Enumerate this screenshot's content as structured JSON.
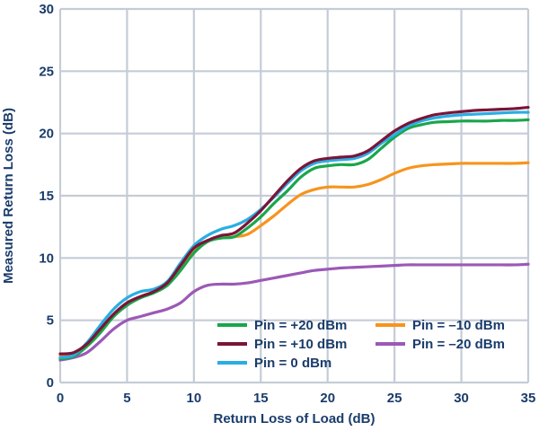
{
  "chart_data": {
    "type": "line",
    "title": "",
    "xlabel": "Return Loss of Load (dB)",
    "ylabel": "Measured Return Loss (dB)",
    "xlim": [
      0,
      35
    ],
    "ylim": [
      0,
      30
    ],
    "xticks": [
      0,
      5,
      10,
      15,
      20,
      25,
      30,
      35
    ],
    "yticks": [
      0,
      5,
      10,
      15,
      20,
      25,
      30
    ],
    "grid": true,
    "legend_position": "bottom-right",
    "x": [
      0,
      1,
      2,
      3,
      4,
      5,
      6,
      7,
      8,
      9,
      10,
      11,
      12,
      13,
      14,
      15,
      16,
      17,
      18,
      19,
      20,
      21,
      22,
      23,
      24,
      25,
      26,
      27,
      28,
      29,
      30,
      31,
      32,
      33,
      34,
      35
    ],
    "series": [
      {
        "name": "Pin = +20 dBm",
        "color": "#1aa64b",
        "values": [
          1.9,
          2.1,
          2.9,
          4.0,
          5.3,
          6.2,
          6.8,
          7.2,
          7.8,
          9.0,
          10.4,
          11.3,
          11.6,
          11.7,
          12.4,
          13.3,
          14.4,
          15.4,
          16.5,
          17.2,
          17.4,
          17.5,
          17.5,
          17.9,
          18.8,
          19.7,
          20.4,
          20.7,
          20.9,
          20.95,
          21.0,
          21.0,
          21.0,
          21.05,
          21.05,
          21.1
        ]
      },
      {
        "name": "Pin = +10 dBm",
        "color": "#7a1538",
        "values": [
          2.3,
          2.4,
          3.1,
          4.3,
          5.5,
          6.4,
          6.9,
          7.3,
          8.0,
          9.4,
          10.8,
          11.4,
          11.8,
          12.0,
          12.8,
          13.8,
          15.0,
          16.2,
          17.2,
          17.8,
          18.0,
          18.1,
          18.2,
          18.6,
          19.4,
          20.2,
          20.8,
          21.2,
          21.5,
          21.65,
          21.75,
          21.85,
          21.9,
          21.95,
          22.0,
          22.1
        ]
      },
      {
        "name": "Pin = 0 dBm",
        "color": "#29aee3",
        "values": [
          2.0,
          2.2,
          3.2,
          4.6,
          5.9,
          6.8,
          7.3,
          7.5,
          8.1,
          9.6,
          11.0,
          11.8,
          12.3,
          12.6,
          13.1,
          13.9,
          14.9,
          16.0,
          17.0,
          17.6,
          17.8,
          17.9,
          18.0,
          18.4,
          19.2,
          19.9,
          20.6,
          21.0,
          21.25,
          21.4,
          21.5,
          21.55,
          21.6,
          21.65,
          21.7,
          21.7
        ]
      },
      {
        "name": "Pin = –10 dBm",
        "color": "#f7941d",
        "values": [
          2.1,
          2.2,
          3.0,
          4.2,
          5.4,
          6.3,
          6.9,
          7.3,
          7.9,
          9.2,
          10.6,
          11.4,
          11.6,
          11.7,
          11.9,
          12.6,
          13.4,
          14.3,
          15.1,
          15.5,
          15.7,
          15.7,
          15.7,
          15.9,
          16.3,
          16.8,
          17.2,
          17.4,
          17.5,
          17.55,
          17.6,
          17.6,
          17.6,
          17.6,
          17.6,
          17.65
        ]
      },
      {
        "name": "Pin = –20 dBm",
        "color": "#9b59b6",
        "values": [
          1.8,
          2.0,
          2.4,
          3.3,
          4.3,
          5.0,
          5.3,
          5.6,
          5.9,
          6.4,
          7.3,
          7.8,
          7.9,
          7.9,
          8.0,
          8.2,
          8.4,
          8.6,
          8.8,
          9.0,
          9.1,
          9.2,
          9.25,
          9.3,
          9.35,
          9.4,
          9.45,
          9.45,
          9.45,
          9.45,
          9.45,
          9.45,
          9.45,
          9.45,
          9.45,
          9.5
        ]
      }
    ]
  }
}
